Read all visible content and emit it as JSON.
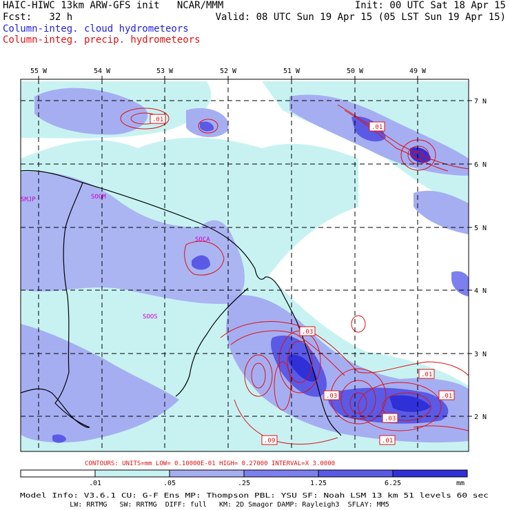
{
  "header": {
    "line1_left": "HAIC-HIWC 13km ARW-GFS init   NCAR/MMM",
    "line1_right": "Init: 00 UTC Sat 18 Apr 15",
    "line2_left": "Fcst:   32 h",
    "line2_right": "Valid: 08 UTC Sun 19 Apr 15 (05 LST Sun 19 Apr 15)",
    "line3": "Column-integ. cloud hydrometeors",
    "line4": "Column-integ. precip. hydrometeors"
  },
  "colors": {
    "cloud_label": "#2222dd",
    "precip_label": "#dd1111",
    "fill_1": "#c8f2f2",
    "fill_2": "#a6aef2",
    "fill_3": "#7c80ee",
    "fill_4": "#5a5ae6",
    "fill_5": "#3030d8",
    "contour": "#dd1111",
    "station": "#cc00cc"
  },
  "map": {
    "lon_labels": [
      "55 W",
      "54 W",
      "53 W",
      "52 W",
      "51 W",
      "50 W",
      "49 W"
    ],
    "lat_labels": [
      "7 N",
      "6 N",
      "5 N",
      "4 N",
      "3 N",
      "2 N"
    ],
    "stations": [
      "SMJP",
      "SOGM",
      "SOCA",
      "SOOS"
    ],
    "contour_labels": [
      ".01",
      ".01",
      ".01",
      ".03",
      ".03",
      ".03",
      ".01",
      ".01",
      ".01",
      ".09"
    ]
  },
  "contour_info": "CONTOURS:  UNITS=mm  LOW= 0.10000E-01  HIGH= 0.27000     INTERVAL=X  3.0000",
  "colorbar": {
    "ticks": [
      ".01",
      ".05",
      ".25",
      "1.25",
      "6.25"
    ],
    "unit": "mm"
  },
  "footer": {
    "line1": "Model Info: V3.6.1    CU: G-F Ens MP: Thompson    PBL: YSU      SF: Noah LSM    13 km    51 levels   60 sec",
    "line2": "            LW: RRTMG   SW: RRTMG  DIFF: full   KM: 2D Smagor DAMP: Rayleigh3  SFLAY: MM5"
  }
}
